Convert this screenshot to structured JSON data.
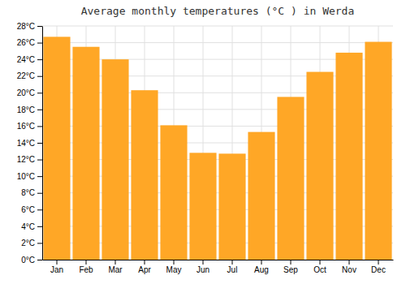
{
  "chart_data": {
    "type": "bar",
    "title": "Average monthly temperatures (°C ) in Werda",
    "categories": [
      "Jan",
      "Feb",
      "Mar",
      "Apr",
      "May",
      "Jun",
      "Jul",
      "Aug",
      "Sep",
      "Oct",
      "Nov",
      "Dec"
    ],
    "values": [
      26.7,
      25.5,
      24.0,
      20.3,
      16.1,
      12.8,
      12.7,
      15.3,
      19.5,
      22.5,
      24.8,
      26.1
    ],
    "color": "#FFA726",
    "ylim": [
      0,
      28
    ],
    "yticks": [
      {
        "value": 0,
        "label": "0°C"
      },
      {
        "value": 2,
        "label": "2°C"
      },
      {
        "value": 4,
        "label": "4°C"
      },
      {
        "value": 6,
        "label": "6°C"
      },
      {
        "value": 8,
        "label": "8°C"
      },
      {
        "value": 10,
        "label": "10°C"
      },
      {
        "value": 12,
        "label": "12°C"
      },
      {
        "value": 14,
        "label": "14°C"
      },
      {
        "value": 16,
        "label": "16°C"
      },
      {
        "value": 18,
        "label": "18°C"
      },
      {
        "value": 20,
        "label": "20°C"
      },
      {
        "value": 22,
        "label": "22°C"
      },
      {
        "value": 24,
        "label": "24°C"
      },
      {
        "value": 26,
        "label": "26°C"
      },
      {
        "value": 28,
        "label": "28°C"
      }
    ],
    "grid": true
  }
}
